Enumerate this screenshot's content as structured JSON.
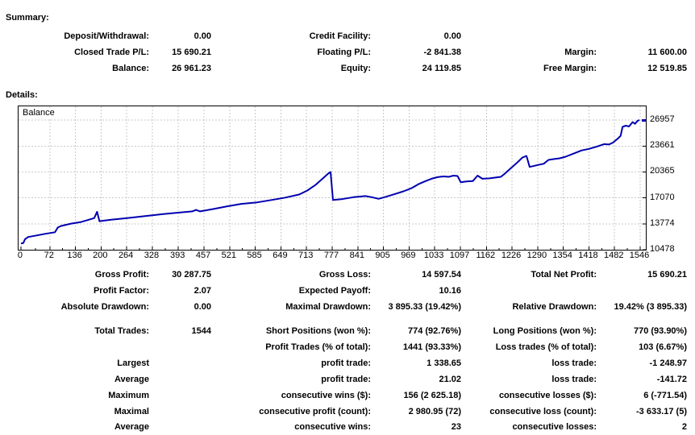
{
  "summary": {
    "title": "Summary:",
    "rows": [
      [
        [
          "Deposit/Withdrawal:",
          "0.00"
        ],
        [
          "Credit Facility:",
          "0.00"
        ],
        [
          "",
          ""
        ]
      ],
      [
        [
          "Closed Trade P/L:",
          "15 690.21"
        ],
        [
          "Floating P/L:",
          "-2 841.38"
        ],
        [
          "Margin:",
          "11 600.00"
        ]
      ],
      [
        [
          "Balance:",
          "26 961.23"
        ],
        [
          "Equity:",
          "24 119.85"
        ],
        [
          "Free Margin:",
          "12 519.85"
        ]
      ]
    ]
  },
  "details": {
    "title": "Details:",
    "rows": [
      [
        [
          "Gross Profit:",
          "30 287.75"
        ],
        [
          "Gross Loss:",
          "14 597.54"
        ],
        [
          "Total Net Profit:",
          "15 690.21"
        ]
      ],
      [
        [
          "Profit Factor:",
          "2.07"
        ],
        [
          "Expected Payoff:",
          "10.16"
        ],
        [
          "",
          ""
        ]
      ],
      [
        [
          "Absolute Drawdown:",
          "0.00"
        ],
        [
          "Maximal Drawdown:",
          "3 895.33 (19.42%)"
        ],
        [
          "Relative Drawdown:",
          "19.42% (3 895.33)"
        ]
      ],
      [
        [
          "Total Trades:",
          "1544"
        ],
        [
          "Short Positions (won %):",
          "774 (92.76%)"
        ],
        [
          "Long Positions (won %):",
          "770 (93.90%)"
        ]
      ],
      [
        [
          "",
          ""
        ],
        [
          "Profit Trades (% of total):",
          "1441 (93.33%)"
        ],
        [
          "Loss trades (% of total):",
          "103 (6.67%)"
        ]
      ],
      [
        [
          "Largest",
          ""
        ],
        [
          "profit trade:",
          "1 338.65"
        ],
        [
          "loss trade:",
          "-1 248.97"
        ]
      ],
      [
        [
          "Average",
          ""
        ],
        [
          "profit trade:",
          "21.02"
        ],
        [
          "loss trade:",
          "-141.72"
        ]
      ],
      [
        [
          "Maximum",
          ""
        ],
        [
          "consecutive wins ($):",
          "156 (2 625.18)"
        ],
        [
          "consecutive losses ($):",
          "6 (-771.54)"
        ]
      ],
      [
        [
          "Maximal",
          ""
        ],
        [
          "consecutive profit (count):",
          "2 980.95 (72)"
        ],
        [
          "consecutive loss (count):",
          "-3 633.17 (5)"
        ]
      ],
      [
        [
          "Average",
          ""
        ],
        [
          "consecutive wins:",
          "23"
        ],
        [
          "consecutive losses:",
          "2"
        ]
      ]
    ]
  },
  "chart_data": {
    "type": "line",
    "title": "Balance",
    "xlabel": "",
    "ylabel": "",
    "grid": true,
    "legend_position": "top-left-inside",
    "x_ticks": [
      0,
      72,
      136,
      200,
      264,
      328,
      393,
      457,
      521,
      585,
      649,
      713,
      777,
      841,
      905,
      969,
      1033,
      1097,
      1162,
      1226,
      1290,
      1354,
      1418,
      1482,
      1546
    ],
    "y_ticks": [
      10478,
      13774,
      17070,
      20365,
      23661,
      26957
    ],
    "xlim": [
      -6,
      1560
    ],
    "ylim": [
      10478,
      28705
    ],
    "line_color": "#0000B0",
    "grid_color": "#C9C9C9",
    "series": [
      {
        "name": "Balance",
        "points": [
          [
            0,
            11271
          ],
          [
            6,
            11340
          ],
          [
            10,
            11800
          ],
          [
            18,
            12100
          ],
          [
            35,
            12250
          ],
          [
            60,
            12500
          ],
          [
            85,
            12700
          ],
          [
            92,
            13300
          ],
          [
            100,
            13500
          ],
          [
            125,
            13800
          ],
          [
            150,
            14000
          ],
          [
            170,
            14300
          ],
          [
            183,
            14500
          ],
          [
            190,
            15300
          ],
          [
            196,
            14100
          ],
          [
            225,
            14300
          ],
          [
            265,
            14500
          ],
          [
            310,
            14750
          ],
          [
            355,
            15000
          ],
          [
            395,
            15200
          ],
          [
            428,
            15350
          ],
          [
            437,
            15550
          ],
          [
            447,
            15350
          ],
          [
            480,
            15650
          ],
          [
            515,
            16000
          ],
          [
            550,
            16300
          ],
          [
            590,
            16500
          ],
          [
            625,
            16800
          ],
          [
            660,
            17100
          ],
          [
            695,
            17500
          ],
          [
            715,
            18000
          ],
          [
            735,
            18700
          ],
          [
            755,
            19600
          ],
          [
            768,
            20200
          ],
          [
            773,
            20350
          ],
          [
            779,
            16800
          ],
          [
            800,
            16900
          ],
          [
            830,
            17150
          ],
          [
            860,
            17300
          ],
          [
            876,
            17150
          ],
          [
            893,
            16950
          ],
          [
            910,
            17200
          ],
          [
            930,
            17500
          ],
          [
            955,
            17900
          ],
          [
            975,
            18300
          ],
          [
            992,
            18800
          ],
          [
            1010,
            19200
          ],
          [
            1025,
            19500
          ],
          [
            1040,
            19700
          ],
          [
            1055,
            19800
          ],
          [
            1068,
            19750
          ],
          [
            1080,
            19900
          ],
          [
            1090,
            19850
          ],
          [
            1098,
            19050
          ],
          [
            1112,
            19150
          ],
          [
            1128,
            19200
          ],
          [
            1140,
            19900
          ],
          [
            1152,
            19500
          ],
          [
            1170,
            19550
          ],
          [
            1185,
            19650
          ],
          [
            1198,
            19750
          ],
          [
            1207,
            20100
          ],
          [
            1222,
            20800
          ],
          [
            1240,
            21600
          ],
          [
            1252,
            22200
          ],
          [
            1262,
            22400
          ],
          [
            1270,
            21000
          ],
          [
            1282,
            21150
          ],
          [
            1295,
            21300
          ],
          [
            1305,
            21400
          ],
          [
            1317,
            21900
          ],
          [
            1330,
            22000
          ],
          [
            1345,
            22100
          ],
          [
            1360,
            22300
          ],
          [
            1380,
            22700
          ],
          [
            1400,
            23100
          ],
          [
            1418,
            23300
          ],
          [
            1438,
            23600
          ],
          [
            1456,
            23900
          ],
          [
            1468,
            23850
          ],
          [
            1478,
            24100
          ],
          [
            1490,
            24600
          ],
          [
            1497,
            24950
          ],
          [
            1502,
            26100
          ],
          [
            1510,
            26250
          ],
          [
            1518,
            26150
          ],
          [
            1527,
            26700
          ],
          [
            1533,
            26480
          ],
          [
            1539,
            26850
          ],
          [
            1544,
            26961
          ]
        ]
      }
    ]
  }
}
